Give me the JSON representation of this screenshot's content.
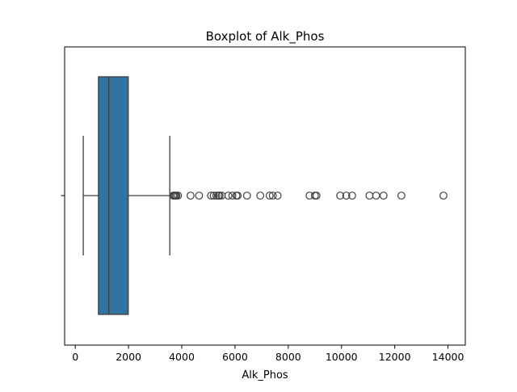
{
  "chart_data": {
    "type": "boxplot",
    "title": "Boxplot of Alk_Phos",
    "xlabel": "Alk_Phos",
    "ylabel": "",
    "orientation": "horizontal",
    "xlim": [
      -400,
      14650
    ],
    "xticks": [
      0,
      2000,
      4000,
      6000,
      8000,
      10000,
      12000,
      14000
    ],
    "xtick_labels": [
      "0",
      "2000",
      "4000",
      "6000",
      "8000",
      "10000",
      "12000",
      "14000"
    ],
    "grid": false,
    "box": {
      "whisker_low": 300,
      "q1": 870,
      "median": 1260,
      "q3": 1990,
      "whisker_high": 3550
    },
    "outliers": [
      3680,
      3720,
      3760,
      3800,
      3860,
      4330,
      4650,
      5100,
      5200,
      5300,
      5380,
      5420,
      5500,
      5750,
      5900,
      6050,
      6100,
      6450,
      6950,
      7300,
      7420,
      7600,
      8800,
      9000,
      9060,
      9950,
      10180,
      10400,
      11050,
      11300,
      11580,
      12250,
      13830
    ],
    "colors": {
      "box_fill": "#3274a1",
      "line": "#3f3f3f",
      "outlier_edge": "#3f3f3f"
    }
  }
}
